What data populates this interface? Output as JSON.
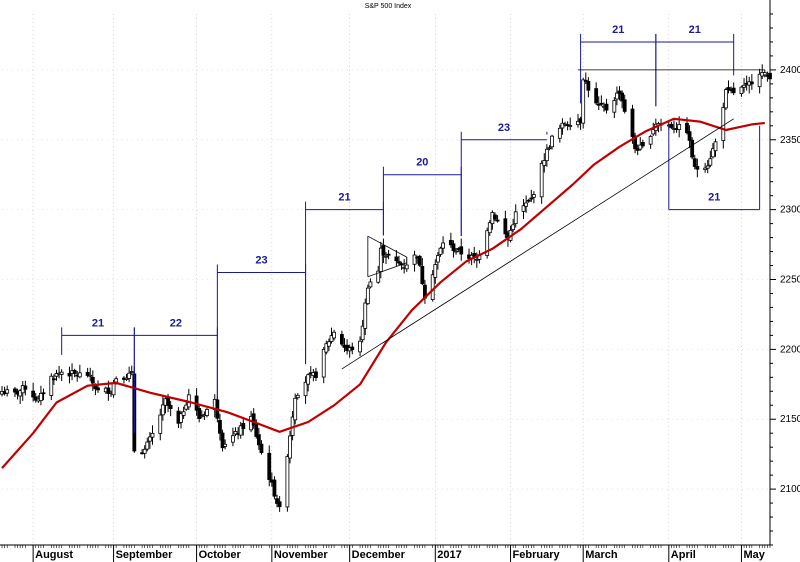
{
  "chart_data": {
    "type": "candlestick",
    "title": "S&P 500 Index",
    "y_axis": {
      "position": "right",
      "ylim": [
        2060,
        2440
      ],
      "ticks": [
        2100,
        2150,
        2200,
        2250,
        2300,
        2350,
        2400
      ]
    },
    "x_axis": {
      "xlim": [
        "2016-07-20",
        "2017-05-12"
      ],
      "month_labels": [
        {
          "label": "August",
          "date": "2016-08-01"
        },
        {
          "label": "September",
          "date": "2016-09-01"
        },
        {
          "label": "October",
          "date": "2016-10-03"
        },
        {
          "label": "November",
          "date": "2016-11-01"
        },
        {
          "label": "December",
          "date": "2016-12-01"
        },
        {
          "label": "2017",
          "date": "2017-01-03"
        },
        {
          "label": "February",
          "date": "2017-02-01"
        },
        {
          "label": "March",
          "date": "2017-03-01"
        },
        {
          "label": "April",
          "date": "2017-04-03"
        },
        {
          "label": "May",
          "date": "2017-05-01"
        }
      ]
    },
    "series": [
      {
        "kind": "close-approximation",
        "values": [
          [
            "2016-07-20",
            2170
          ],
          [
            "2016-07-25",
            2168
          ],
          [
            "2016-07-29",
            2173
          ],
          [
            "2016-08-03",
            2163
          ],
          [
            "2016-08-08",
            2180
          ],
          [
            "2016-08-12",
            2184
          ],
          [
            "2016-08-17",
            2182
          ],
          [
            "2016-08-22",
            2182
          ],
          [
            "2016-08-26",
            2170
          ],
          [
            "2016-08-31",
            2171
          ],
          [
            "2016-09-02",
            2180
          ],
          [
            "2016-09-08",
            2182
          ],
          [
            "2016-09-09",
            2128
          ],
          [
            "2016-09-13",
            2128
          ],
          [
            "2016-09-16",
            2139
          ],
          [
            "2016-09-21",
            2163
          ],
          [
            "2016-09-26",
            2146
          ],
          [
            "2016-09-30",
            2168
          ],
          [
            "2016-10-04",
            2151
          ],
          [
            "2016-10-10",
            2163
          ],
          [
            "2016-10-13",
            2132
          ],
          [
            "2016-10-18",
            2139
          ],
          [
            "2016-10-24",
            2151
          ],
          [
            "2016-10-28",
            2126
          ],
          [
            "2016-11-02",
            2097
          ],
          [
            "2016-11-04",
            2085
          ],
          [
            "2016-11-08",
            2139
          ],
          [
            "2016-11-10",
            2167
          ],
          [
            "2016-11-15",
            2180
          ],
          [
            "2016-11-18",
            2182
          ],
          [
            "2016-11-22",
            2203
          ],
          [
            "2016-11-25",
            2213
          ],
          [
            "2016-11-30",
            2199
          ],
          [
            "2016-12-05",
            2204
          ],
          [
            "2016-12-08",
            2246
          ],
          [
            "2016-12-12",
            2256
          ],
          [
            "2016-12-13",
            2271
          ],
          [
            "2016-12-19",
            2262
          ],
          [
            "2016-12-22",
            2260
          ],
          [
            "2016-12-27",
            2268
          ],
          [
            "2016-12-30",
            2239
          ],
          [
            "2017-01-06",
            2277
          ],
          [
            "2017-01-12",
            2270
          ],
          [
            "2017-01-19",
            2264
          ],
          [
            "2017-01-25",
            2298
          ],
          [
            "2017-01-31",
            2279
          ],
          [
            "2017-02-03",
            2297
          ],
          [
            "2017-02-09",
            2307
          ],
          [
            "2017-02-14",
            2337
          ],
          [
            "2017-02-17",
            2351
          ],
          [
            "2017-02-22",
            2362
          ],
          [
            "2017-02-28",
            2364
          ],
          [
            "2017-03-01",
            2395
          ],
          [
            "2017-03-06",
            2375
          ],
          [
            "2017-03-10",
            2372
          ],
          [
            "2017-03-15",
            2385
          ],
          [
            "2017-03-21",
            2344
          ],
          [
            "2017-03-24",
            2344
          ],
          [
            "2017-03-29",
            2362
          ],
          [
            "2017-04-04",
            2360
          ],
          [
            "2017-04-10",
            2357
          ],
          [
            "2017-04-13",
            2329
          ],
          [
            "2017-04-18",
            2333
          ],
          [
            "2017-04-21",
            2348
          ],
          [
            "2017-04-25",
            2384
          ],
          [
            "2017-04-28",
            2384
          ],
          [
            "2017-05-03",
            2388
          ],
          [
            "2017-05-08",
            2399
          ],
          [
            "2017-05-10",
            2396
          ]
        ]
      },
      {
        "kind": "moving-average",
        "color": "#c00000",
        "values": [
          [
            "2016-07-20",
            2115
          ],
          [
            "2016-08-01",
            2140
          ],
          [
            "2016-08-10",
            2162
          ],
          [
            "2016-08-22",
            2174
          ],
          [
            "2016-09-02",
            2176
          ],
          [
            "2016-09-15",
            2169
          ],
          [
            "2016-10-01",
            2162
          ],
          [
            "2016-10-15",
            2155
          ],
          [
            "2016-10-25",
            2148
          ],
          [
            "2016-11-04",
            2141
          ],
          [
            "2016-11-15",
            2148
          ],
          [
            "2016-11-25",
            2160
          ],
          [
            "2016-12-05",
            2175
          ],
          [
            "2016-12-15",
            2205
          ],
          [
            "2016-12-25",
            2228
          ],
          [
            "2017-01-05",
            2248
          ],
          [
            "2017-01-15",
            2263
          ],
          [
            "2017-01-25",
            2272
          ],
          [
            "2017-02-05",
            2286
          ],
          [
            "2017-02-15",
            2302
          ],
          [
            "2017-02-25",
            2318
          ],
          [
            "2017-03-05",
            2332
          ],
          [
            "2017-03-15",
            2345
          ],
          [
            "2017-03-25",
            2356
          ],
          [
            "2017-04-05",
            2365
          ],
          [
            "2017-04-15",
            2363
          ],
          [
            "2017-04-25",
            2357
          ],
          [
            "2017-05-05",
            2361
          ],
          [
            "2017-05-10",
            2362
          ]
        ]
      }
    ],
    "annotations": {
      "cycle_brackets": [
        {
          "label": "21",
          "start": "2016-08-12",
          "end": "2016-09-09",
          "level": 2210
        },
        {
          "label": "22",
          "start": "2016-09-09",
          "end": "2016-10-11",
          "level": 2210
        },
        {
          "label": "23",
          "start": "2016-10-11",
          "end": "2016-11-14",
          "level": 2255
        },
        {
          "label": "21",
          "start": "2016-11-14",
          "end": "2016-12-14",
          "level": 2300
        },
        {
          "label": "20",
          "start": "2016-12-14",
          "end": "2017-01-13",
          "level": 2325
        },
        {
          "label": "23",
          "start": "2017-01-13",
          "end": "2017-02-15",
          "level": 2350
        },
        {
          "label": "21",
          "start": "2017-02-28",
          "end": "2017-03-29",
          "level": 2420
        },
        {
          "label": "21",
          "start": "2017-03-29",
          "end": "2017-04-28",
          "level": 2420
        },
        {
          "label": "21",
          "start": "2017-04-03",
          "end": "2017-05-08",
          "level": 2300
        }
      ],
      "trendline": {
        "start": [
          "2016-11-28",
          2186
        ],
        "end": [
          "2017-04-28",
          2365
        ]
      },
      "triangle": {
        "start": "2016-12-08",
        "end": "2016-12-23"
      },
      "resistance_line": {
        "start": "2017-02-27",
        "end": "2017-05-10",
        "level": 2400
      },
      "cycle_label_color": "#1a1a99",
      "moving_average_color": "#c00000"
    }
  }
}
